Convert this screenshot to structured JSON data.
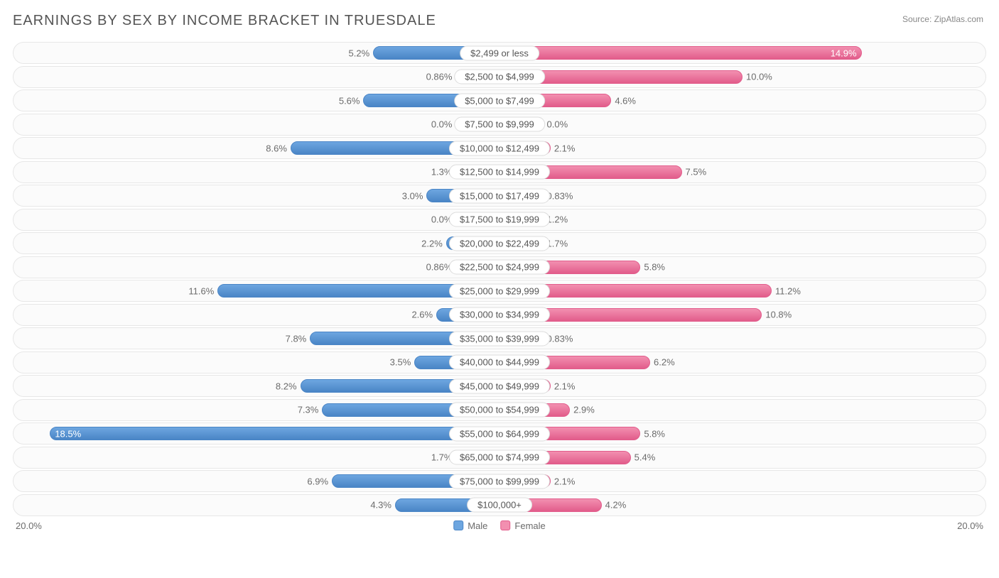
{
  "title": "EARNINGS BY SEX BY INCOME BRACKET IN TRUESDALE",
  "source": "Source: ZipAtlas.com",
  "colors": {
    "male_fill": "#6da6e0",
    "male_stroke": "#4a85c6",
    "female_fill": "#f28fb0",
    "female_stroke": "#e25c8b",
    "row_bg": "#fbfbfb",
    "row_border": "#e7e7e7",
    "text": "#6b6b6b",
    "title_text": "#555555"
  },
  "axis": {
    "max_pct": 20.0,
    "left_label": "20.0%",
    "right_label": "20.0%"
  },
  "legend": {
    "male": "Male",
    "female": "Female"
  },
  "rows": [
    {
      "category": "$2,499 or less",
      "male": 5.2,
      "male_label": "5.2%",
      "female": 14.9,
      "female_label": "14.9%",
      "min_bar_pct": 1.8
    },
    {
      "category": "$2,500 to $4,999",
      "male": 0.86,
      "male_label": "0.86%",
      "female": 10.0,
      "female_label": "10.0%",
      "min_bar_pct": 1.8
    },
    {
      "category": "$5,000 to $7,499",
      "male": 5.6,
      "male_label": "5.6%",
      "female": 4.6,
      "female_label": "4.6%",
      "min_bar_pct": 1.8
    },
    {
      "category": "$7,500 to $9,999",
      "male": 0.0,
      "male_label": "0.0%",
      "female": 0.0,
      "female_label": "0.0%",
      "min_bar_pct": 1.8
    },
    {
      "category": "$10,000 to $12,499",
      "male": 8.6,
      "male_label": "8.6%",
      "female": 2.1,
      "female_label": "2.1%",
      "min_bar_pct": 1.8
    },
    {
      "category": "$12,500 to $14,999",
      "male": 1.3,
      "male_label": "1.3%",
      "female": 7.5,
      "female_label": "7.5%",
      "min_bar_pct": 1.8
    },
    {
      "category": "$15,000 to $17,499",
      "male": 3.0,
      "male_label": "3.0%",
      "female": 0.83,
      "female_label": "0.83%",
      "min_bar_pct": 1.8
    },
    {
      "category": "$17,500 to $19,999",
      "male": 0.0,
      "male_label": "0.0%",
      "female": 1.2,
      "female_label": "1.2%",
      "min_bar_pct": 1.8
    },
    {
      "category": "$20,000 to $22,499",
      "male": 2.2,
      "male_label": "2.2%",
      "female": 1.7,
      "female_label": "1.7%",
      "min_bar_pct": 1.8
    },
    {
      "category": "$22,500 to $24,999",
      "male": 0.86,
      "male_label": "0.86%",
      "female": 5.8,
      "female_label": "5.8%",
      "min_bar_pct": 1.8
    },
    {
      "category": "$25,000 to $29,999",
      "male": 11.6,
      "male_label": "11.6%",
      "female": 11.2,
      "female_label": "11.2%",
      "min_bar_pct": 1.8
    },
    {
      "category": "$30,000 to $34,999",
      "male": 2.6,
      "male_label": "2.6%",
      "female": 10.8,
      "female_label": "10.8%",
      "min_bar_pct": 1.8
    },
    {
      "category": "$35,000 to $39,999",
      "male": 7.8,
      "male_label": "7.8%",
      "female": 0.83,
      "female_label": "0.83%",
      "min_bar_pct": 1.8
    },
    {
      "category": "$40,000 to $44,999",
      "male": 3.5,
      "male_label": "3.5%",
      "female": 6.2,
      "female_label": "6.2%",
      "min_bar_pct": 1.8
    },
    {
      "category": "$45,000 to $49,999",
      "male": 8.2,
      "male_label": "8.2%",
      "female": 2.1,
      "female_label": "2.1%",
      "min_bar_pct": 1.8
    },
    {
      "category": "$50,000 to $54,999",
      "male": 7.3,
      "male_label": "7.3%",
      "female": 2.9,
      "female_label": "2.9%",
      "min_bar_pct": 1.8
    },
    {
      "category": "$55,000 to $64,999",
      "male": 18.5,
      "male_label": "18.5%",
      "female": 5.8,
      "female_label": "5.8%",
      "min_bar_pct": 1.8
    },
    {
      "category": "$65,000 to $74,999",
      "male": 1.7,
      "male_label": "1.7%",
      "female": 5.4,
      "female_label": "5.4%",
      "min_bar_pct": 1.8
    },
    {
      "category": "$75,000 to $99,999",
      "male": 6.9,
      "male_label": "6.9%",
      "female": 2.1,
      "female_label": "2.1%",
      "min_bar_pct": 1.8
    },
    {
      "category": "$100,000+",
      "male": 4.3,
      "male_label": "4.3%",
      "female": 4.2,
      "female_label": "4.2%",
      "min_bar_pct": 1.8
    }
  ]
}
